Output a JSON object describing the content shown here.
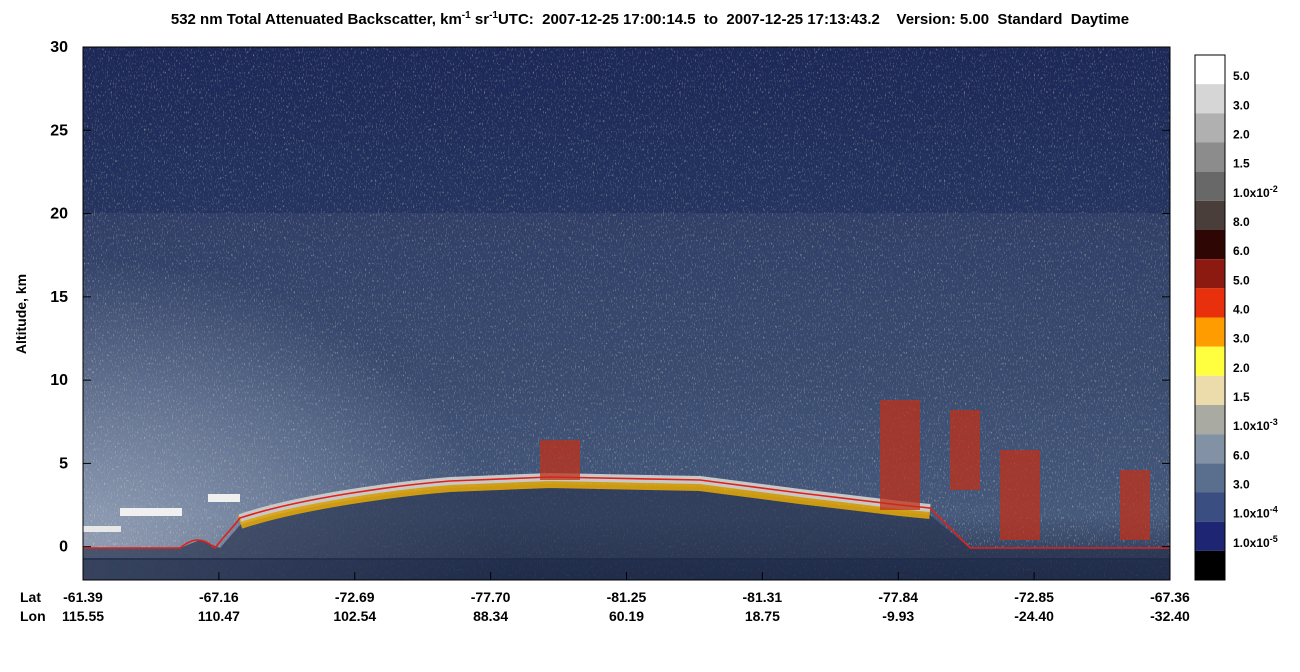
{
  "chart_data": {
    "type": "curtain",
    "title": {
      "main": "532 nm Total Attenuated Backscatter, km",
      "sup1": "-1",
      "mid": " sr",
      "sup2": "-1",
      "info": "UTC:  2007-12-25 17:00:14.5  to  2007-12-25 17:13:43.2    Version: 5.00  Standard  Daytime"
    },
    "y_label": "Altitude, km",
    "ylim": [
      -2,
      30
    ],
    "yticks": [
      0,
      5,
      10,
      15,
      20,
      25,
      30
    ],
    "row_labels": [
      "Lat",
      "Lon"
    ],
    "lat": [
      "-61.39",
      "-67.16",
      "-72.69",
      "-77.70",
      "-81.25",
      "-81.31",
      "-77.84",
      "-72.85",
      "-67.36"
    ],
    "lon": [
      "115.55",
      "110.47",
      "102.54",
      "88.34",
      "60.19",
      "18.75",
      "-9.93",
      "-24.40",
      "-32.40"
    ],
    "colorbar": {
      "colors": [
        "#ffffff",
        "#d6d6d6",
        "#b0b0b0",
        "#8c8c8c",
        "#686868",
        "#4a3e3b",
        "#2e0705",
        "#8c1a10",
        "#e8300c",
        "#ff9c00",
        "#ffff40",
        "#ecdcac",
        "#a9aba2",
        "#8292a4",
        "#5a6e8e",
        "#3a4e82",
        "#1e2674",
        "#000000"
      ],
      "labels": [
        {
          "text": "5.0"
        },
        {
          "text": "3.0"
        },
        {
          "text": "2.0"
        },
        {
          "text": "1.5"
        },
        {
          "text": "1.0x10",
          "exp": "-2"
        },
        {
          "text": "8.0"
        },
        {
          "text": "6.0"
        },
        {
          "text": "5.0"
        },
        {
          "text": "4.0"
        },
        {
          "text": "3.0"
        },
        {
          "text": "2.0"
        },
        {
          "text": "1.5"
        },
        {
          "text": "1.0x10",
          "exp": "-3"
        },
        {
          "text": "6.0"
        },
        {
          "text": "3.0"
        },
        {
          "text": "1.0x10",
          "exp": "-4"
        },
        {
          "text": "1.0x10",
          "exp": "-5"
        }
      ]
    }
  }
}
